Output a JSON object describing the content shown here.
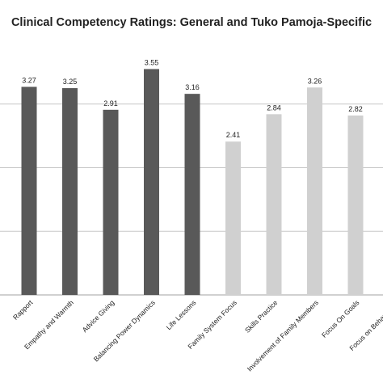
{
  "chart_data": {
    "type": "bar",
    "title": "Clinical Competency Ratings: General and Tuko Pamoja-Specific",
    "categories": [
      "Rapport",
      "Empathy and Warmth",
      "Advice Giving",
      "Balancing Power Dynamics",
      "Life Lessons",
      "Family System Focus",
      "Skills Practice",
      "Involvement of Family Members",
      "Focus On Goals",
      "Focus on Behavior Ch"
    ],
    "values": [
      3.27,
      3.25,
      2.91,
      3.55,
      3.16,
      2.41,
      2.84,
      3.26,
      2.82,
      null
    ],
    "data_labels": [
      "3.27",
      "3.25",
      "2.91",
      "3.55",
      "3.16",
      "2.41",
      "2.84",
      "3.26",
      "2.82",
      ""
    ],
    "groups": [
      "general",
      "general",
      "general",
      "general",
      "general",
      "tuko",
      "tuko",
      "tuko",
      "tuko",
      "tuko"
    ],
    "colors": {
      "general": "#595959",
      "tuko": "#d0d0d0",
      "gridline": "#c8c8c8"
    },
    "ylim": [
      0,
      4
    ],
    "grid": true,
    "xlabel": "",
    "ylabel": ""
  }
}
